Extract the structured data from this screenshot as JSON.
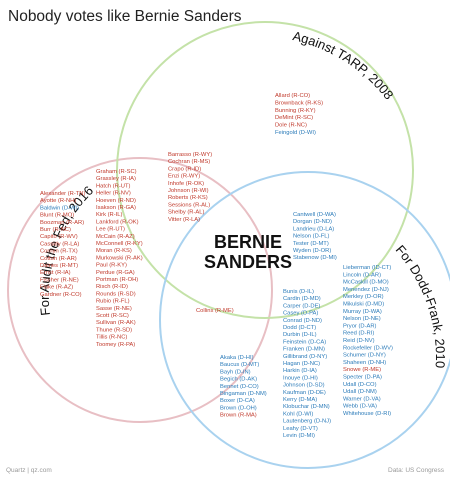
{
  "title": "Nobody votes like Bernie Sanders",
  "footer": {
    "left": "Quartz | qz.com",
    "right": "Data: US Congress"
  },
  "colors": {
    "red": "#c0392b",
    "blue": "#2b7bb9",
    "ring_red": "#e8bfc4",
    "ring_green": "#c4e2a8",
    "ring_blue": "#a9d2ef"
  },
  "diagram": {
    "center_label": [
      "BERNIE",
      "SANDERS"
    ],
    "sets": [
      {
        "label": "For Audit the Fed, 2016",
        "color": "#e8bfc4"
      },
      {
        "label": "Against TARP, 2008",
        "color": "#c4e2a8"
      },
      {
        "label": "For Dodd-Frank, 2010",
        "color": "#a9d2ef"
      }
    ],
    "regions": {
      "tarp_only": [
        {
          "t": "Allard (R-CO)",
          "c": "r"
        },
        {
          "t": "Brownback (R-KS)",
          "c": "r"
        },
        {
          "t": "Bunning (R-KY)",
          "c": "r"
        },
        {
          "t": "DeMint (R-SC)",
          "c": "r"
        },
        {
          "t": "Dole (R-NC)",
          "c": "r"
        },
        {
          "t": "Feingold (D-WI)",
          "c": "b"
        }
      ],
      "audit_tarp": [
        {
          "t": "Barrasso (R-WY)",
          "c": "r"
        },
        {
          "t": "Cochran (R-MS)",
          "c": "r"
        },
        {
          "t": "Crapo (R-ID)",
          "c": "r"
        },
        {
          "t": "Enzi (R-WY)",
          "c": "r"
        },
        {
          "t": "Inhofe (R-OK)",
          "c": "r"
        },
        {
          "t": "Johnson (R-WI)",
          "c": "r"
        },
        {
          "t": "Roberts (R-KS)",
          "c": "r"
        },
        {
          "t": "Sessions (R-AL)",
          "c": "r"
        },
        {
          "t": "Shelby (R-AL)",
          "c": "r"
        },
        {
          "t": "Vitter (R-LA)",
          "c": "r"
        }
      ],
      "audit_col1": [
        {
          "t": "Alexander (R-TN)",
          "c": "r"
        },
        {
          "t": "Ayotte (R-NH)",
          "c": "r"
        },
        {
          "t": "Baldwin (D-WI)",
          "c": "b"
        },
        {
          "t": "Blunt (R-MO)",
          "c": "r"
        },
        {
          "t": "Boozman (R-AR)",
          "c": "r"
        },
        {
          "t": "Burr (R-NC)",
          "c": "r"
        },
        {
          "t": "Capito (R-WV)",
          "c": "r"
        },
        {
          "t": "Cassidy (R-LA)",
          "c": "r"
        },
        {
          "t": "Cornyn (R-TX)",
          "c": "r"
        },
        {
          "t": "Cotton (R-AR)",
          "c": "r"
        },
        {
          "t": "Daines (R-MT)",
          "c": "r"
        },
        {
          "t": "Ernst (R-IA)",
          "c": "r"
        },
        {
          "t": "Fischer (R-NE)",
          "c": "r"
        },
        {
          "t": "Flake (R-AZ)",
          "c": "r"
        },
        {
          "t": "Gardner (R-CO)",
          "c": "r"
        }
      ],
      "audit_col2": [
        {
          "t": "Graham (R-SC)",
          "c": "r"
        },
        {
          "t": "Grassley (R-IA)",
          "c": "r"
        },
        {
          "t": "Hatch (R-UT)",
          "c": "r"
        },
        {
          "t": "Heller (R-NV)",
          "c": "r"
        },
        {
          "t": "Hoeven (R-ND)",
          "c": "r"
        },
        {
          "t": "Isakson (R-GA)",
          "c": "r"
        },
        {
          "t": "Kirk (R-IL)",
          "c": "r"
        },
        {
          "t": "Lankford (R-OK)",
          "c": "r"
        },
        {
          "t": "Lee (R-UT)",
          "c": "r"
        },
        {
          "t": "McCain (R-AZ)",
          "c": "r"
        },
        {
          "t": "McConnell (R-KY)",
          "c": "r"
        },
        {
          "t": "Moran (R-KS)",
          "c": "r"
        },
        {
          "t": "Murkowski (R-AK)",
          "c": "r"
        },
        {
          "t": "Paul (R-KY)",
          "c": "r"
        },
        {
          "t": "Perdue (R-GA)",
          "c": "r"
        },
        {
          "t": "Portman (R-OH)",
          "c": "r"
        },
        {
          "t": "Risch (R-ID)",
          "c": "r"
        },
        {
          "t": "Rounds (R-SD)",
          "c": "r"
        },
        {
          "t": "Rubio (R-FL)",
          "c": "r"
        },
        {
          "t": "Sasse (R-NE)",
          "c": "r"
        },
        {
          "t": "Scott (R-SC)",
          "c": "r"
        },
        {
          "t": "Sullivan (R-AK)",
          "c": "r"
        },
        {
          "t": "Thune (R-SD)",
          "c": "r"
        },
        {
          "t": "Tillis (R-NC)",
          "c": "r"
        },
        {
          "t": "Toomey (R-PA)",
          "c": "r"
        }
      ],
      "audit_dodd": [
        {
          "t": "Collins (R-ME)",
          "c": "r"
        }
      ],
      "tarp_dodd": [
        {
          "t": "Cantwell (D-WA)",
          "c": "b"
        },
        {
          "t": "Dorgan (D-ND)",
          "c": "b"
        },
        {
          "t": "Landrieu (D-LA)",
          "c": "b"
        },
        {
          "t": "Nelson (D-FL)",
          "c": "b"
        },
        {
          "t": "Tester (D-MT)",
          "c": "b"
        },
        {
          "t": "Wyden (D-OR)",
          "c": "b"
        },
        {
          "t": "Stabenow (D-MI)",
          "c": "b"
        }
      ],
      "dodd_col_right": [
        {
          "t": "Lieberman (ID-CT)",
          "c": "b"
        },
        {
          "t": "Lincoln (D-AR)",
          "c": "b"
        },
        {
          "t": "McCaskill (D-MO)",
          "c": "b"
        },
        {
          "t": "Menendez (D-NJ)",
          "c": "b"
        },
        {
          "t": "Merkley (D-OR)",
          "c": "b"
        },
        {
          "t": "Mikulski (D-MD)",
          "c": "b"
        },
        {
          "t": "Murray (D-WA)",
          "c": "b"
        },
        {
          "t": "Nelson (D-NE)",
          "c": "b"
        },
        {
          "t": "Pryor (D-AR)",
          "c": "b"
        },
        {
          "t": "Reed (D-RI)",
          "c": "b"
        },
        {
          "t": "Reid (D-NV)",
          "c": "b"
        },
        {
          "t": "Rockefeller (D-WV)",
          "c": "b"
        },
        {
          "t": "Schumer (D-NY)",
          "c": "b"
        },
        {
          "t": "Shaheen (D-NH)",
          "c": "b"
        },
        {
          "t": "Snowe (R-ME)",
          "c": "r"
        },
        {
          "t": "Specter (D-PA)",
          "c": "b"
        },
        {
          "t": "Udall (D-CO)",
          "c": "b"
        },
        {
          "t": "Udall (D-NM)",
          "c": "b"
        },
        {
          "t": "Warner (D-VA)",
          "c": "b"
        },
        {
          "t": "Webb (D-VA)",
          "c": "b"
        },
        {
          "t": "Whitehouse (D-RI)",
          "c": "b"
        }
      ],
      "dodd_col_mid": [
        {
          "t": "Bunis (D-IL)",
          "c": "b"
        },
        {
          "t": "Cardin (D-MD)",
          "c": "b"
        },
        {
          "t": "Carper (D-DE)",
          "c": "b"
        },
        {
          "t": "Casey (D-PA)",
          "c": "b"
        },
        {
          "t": "Conrad (D-ND)",
          "c": "b"
        },
        {
          "t": "Dodd (D-CT)",
          "c": "b"
        },
        {
          "t": "Durbin (D-IL)",
          "c": "b"
        },
        {
          "t": "Feinstein (D-CA)",
          "c": "b"
        },
        {
          "t": "Franken (D-MN)",
          "c": "b"
        },
        {
          "t": "Gillibrand (D-NY)",
          "c": "b"
        },
        {
          "t": "Hagan (D-NC)",
          "c": "b"
        },
        {
          "t": "Harkin (D-IA)",
          "c": "b"
        },
        {
          "t": "Inouye (D-HI)",
          "c": "b"
        },
        {
          "t": "Johnson (D-SD)",
          "c": "b"
        },
        {
          "t": "Kaufman (D-DE)",
          "c": "b"
        },
        {
          "t": "Kerry (D-MA)",
          "c": "b"
        },
        {
          "t": "Klobuchar (D-MN)",
          "c": "b"
        },
        {
          "t": "Kohl (D-WI)",
          "c": "b"
        },
        {
          "t": "Lautenberg (D-NJ)",
          "c": "b"
        },
        {
          "t": "Leahy (D-VT)",
          "c": "b"
        },
        {
          "t": "Levin (D-MI)",
          "c": "b"
        }
      ],
      "dodd_col_left": [
        {
          "t": "Akaka (D-HI)",
          "c": "b"
        },
        {
          "t": "Baucus (D-MT)",
          "c": "b"
        },
        {
          "t": "Bayh (D-IN)",
          "c": "b"
        },
        {
          "t": "Begich (D-AK)",
          "c": "b"
        },
        {
          "t": "Bennet (D-CO)",
          "c": "b"
        },
        {
          "t": "Bingaman (D-NM)",
          "c": "b"
        },
        {
          "t": "Boxer (D-CA)",
          "c": "b"
        },
        {
          "t": "Brown (D-OH)",
          "c": "b"
        },
        {
          "t": "Brown (R-MA)",
          "c": "r"
        }
      ]
    }
  }
}
